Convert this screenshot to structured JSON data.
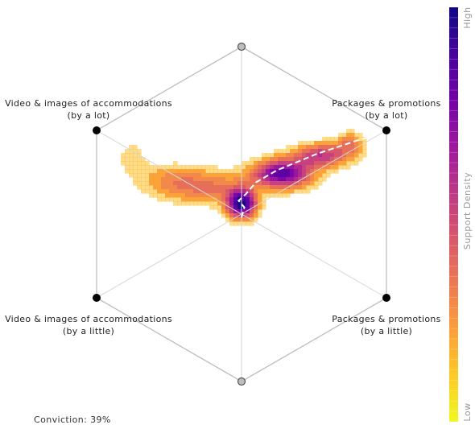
{
  "chart_data": {
    "type": "hexagonal-density",
    "title": "",
    "vertices": [
      {
        "label_lines": [],
        "marker": "gray"
      },
      {
        "label_lines": [
          "Packages & promotions",
          "(by a lot)"
        ],
        "marker": "black"
      },
      {
        "label_lines": [
          "Packages & promotions",
          "(by a little)"
        ],
        "marker": "black"
      },
      {
        "label_lines": [],
        "marker": "gray"
      },
      {
        "label_lines": [
          "Video & images of accommodations",
          "(by a little)"
        ],
        "marker": "black"
      },
      {
        "label_lines": [
          "Video & images of accommodations",
          "(by a lot)"
        ],
        "marker": "black"
      }
    ],
    "density_blobs": [
      {
        "u": 0.0,
        "v": 0.06,
        "su": 0.07,
        "sv": 0.06,
        "w": 1.0
      },
      {
        "u": 0.28,
        "v": 0.24,
        "su": 0.14,
        "sv": 0.06,
        "w": 0.85
      },
      {
        "u": 0.55,
        "v": 0.35,
        "su": 0.13,
        "sv": 0.05,
        "w": 0.55
      },
      {
        "u": 0.75,
        "v": 0.42,
        "su": 0.07,
        "sv": 0.05,
        "w": 0.3
      },
      {
        "u": -0.22,
        "v": 0.16,
        "su": 0.18,
        "sv": 0.07,
        "w": 0.32
      },
      {
        "u": -0.5,
        "v": 0.2,
        "su": 0.15,
        "sv": 0.07,
        "w": 0.22
      },
      {
        "u": -0.76,
        "v": 0.34,
        "su": 0.08,
        "sv": 0.08,
        "w": 0.12
      },
      {
        "u": -0.22,
        "v": -0.24,
        "su": 0.05,
        "sv": 0.07,
        "w": 0.08
      }
    ],
    "trajectory": [
      [
        0.0,
        -0.02
      ],
      [
        0.02,
        0.04
      ],
      [
        -0.02,
        0.08
      ],
      [
        0.03,
        0.12
      ],
      [
        0.1,
        0.19
      ],
      [
        0.24,
        0.26
      ],
      [
        0.38,
        0.31
      ],
      [
        0.52,
        0.36
      ],
      [
        0.66,
        0.4
      ],
      [
        0.8,
        0.44
      ],
      [
        0.92,
        0.47
      ]
    ],
    "colorbar": {
      "title": "Support Density",
      "high_label": "High",
      "low_label": "Low",
      "colormap": "plasma"
    },
    "annotation": "Conviction: 39%"
  }
}
